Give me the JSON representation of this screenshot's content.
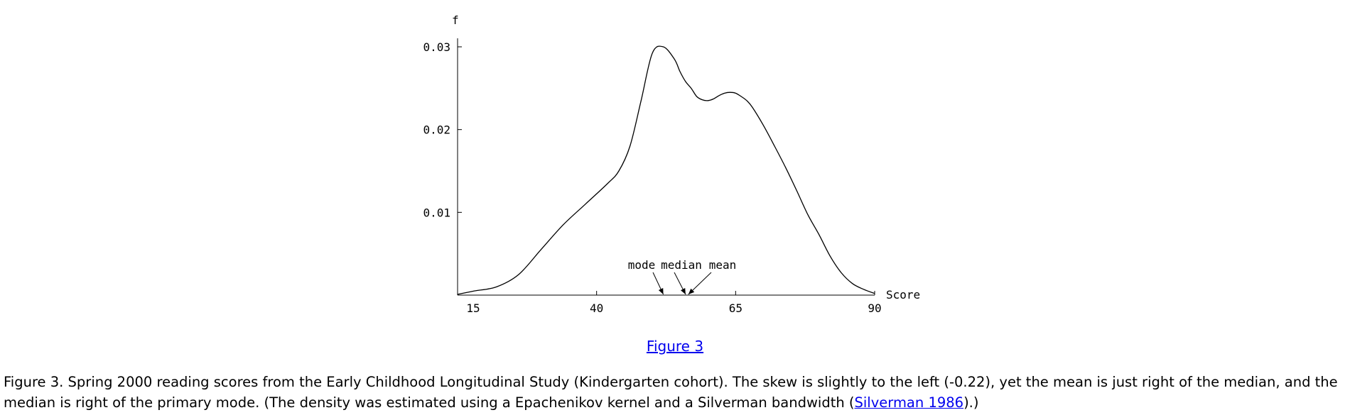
{
  "chart_data": {
    "type": "line",
    "ylabel": "f",
    "xlabel": "Score",
    "xlim": [
      15,
      90
    ],
    "ylim": [
      0,
      0.03
    ],
    "xticks": [
      15,
      40,
      65,
      90
    ],
    "yticks": [
      0.01,
      0.02,
      0.03
    ],
    "x": [
      15,
      18,
      22,
      26,
      30,
      34,
      38,
      42,
      44,
      46,
      48,
      50,
      52,
      54,
      55,
      56,
      57,
      58,
      59,
      60,
      61,
      62,
      63,
      64,
      65,
      66,
      67,
      68,
      70,
      72,
      74,
      76,
      78,
      80,
      82,
      84,
      86,
      88,
      90
    ],
    "y": [
      0.0001,
      0.0005,
      0.001,
      0.0025,
      0.0055,
      0.0085,
      0.011,
      0.0135,
      0.015,
      0.018,
      0.0235,
      0.0292,
      0.03,
      0.0285,
      0.027,
      0.0258,
      0.025,
      0.024,
      0.0236,
      0.0235,
      0.0237,
      0.0241,
      0.0244,
      0.0245,
      0.0244,
      0.024,
      0.0235,
      0.0227,
      0.0205,
      0.018,
      0.0154,
      0.0126,
      0.0097,
      0.0073,
      0.0047,
      0.0027,
      0.0014,
      0.0007,
      0.0002
    ],
    "annotations": [
      {
        "text": "mode",
        "x": 52
      },
      {
        "text": "median",
        "x": 56
      },
      {
        "text": "mean",
        "x": 56.5
      }
    ]
  },
  "figure_link": "Figure 3",
  "caption": {
    "text": "Figure 3. Spring 2000 reading scores from the Early Childhood Longitudinal Study (Kindergarten cohort). The skew is slightly to the left (-0.22), yet the mean is just right of the median, and the median is right of the primary mode. (The density was estimated using a Epachenikov kernel and a Silverman bandwidth (",
    "link": "Silverman 1986",
    "suffix": ").)"
  }
}
